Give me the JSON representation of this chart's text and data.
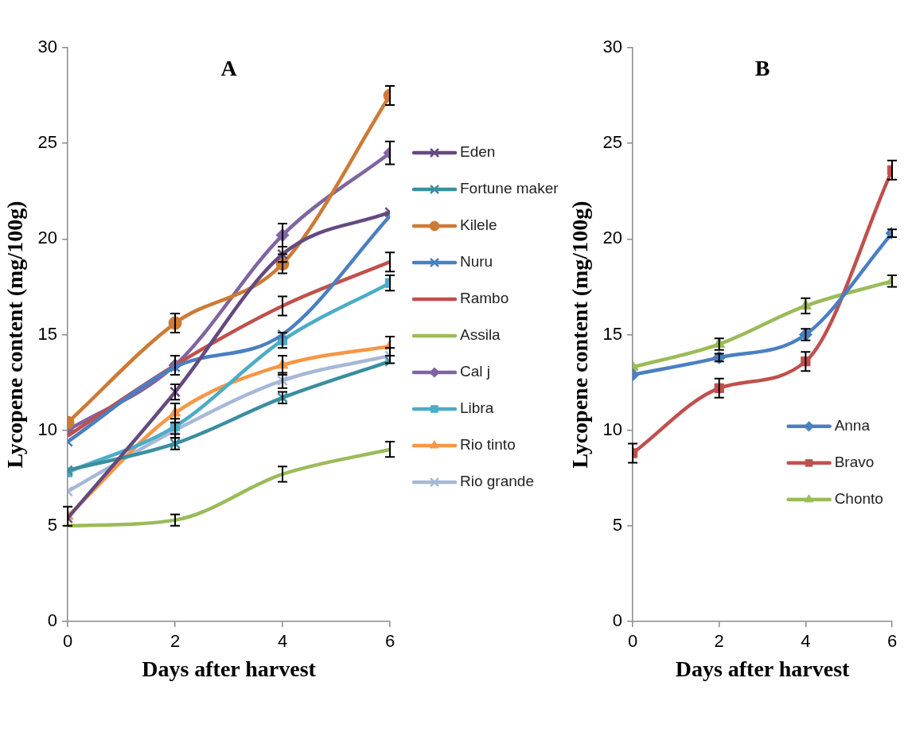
{
  "chart_data": [
    {
      "type": "line",
      "title": "A",
      "xlabel": "Days after harvest",
      "ylabel": "Lycopene content (mg/100g)",
      "x": [
        0,
        2,
        4,
        6
      ],
      "xlim": [
        0,
        6
      ],
      "xticks": [
        0,
        2,
        4,
        6
      ],
      "ylim": [
        0,
        30
      ],
      "yticks": [
        0,
        5,
        10,
        15,
        20,
        25,
        30
      ],
      "grid": false,
      "legend": "right",
      "series": [
        {
          "name": "Eden",
          "color": "#654a80",
          "marker": "cross",
          "values": [
            5.4,
            12.0,
            19.2,
            21.4
          ],
          "errors": [
            null,
            0.4,
            0.4,
            null
          ]
        },
        {
          "name": "Fortune maker",
          "color": "#3a8ea0",
          "marker": "cross",
          "values": [
            7.9,
            9.3,
            11.7,
            13.6
          ],
          "errors": [
            null,
            0.3,
            0.3,
            null
          ]
        },
        {
          "name": "Kilele",
          "color": "#cd7a35",
          "marker": "circle",
          "values": [
            10.4,
            15.6,
            18.7,
            27.5
          ],
          "errors": [
            null,
            0.5,
            0.5,
            0.5
          ]
        },
        {
          "name": "Nuru",
          "color": "#4a7fc1",
          "marker": "cross",
          "values": [
            9.4,
            13.3,
            15.0,
            21.2
          ]
        },
        {
          "name": "Rambo",
          "color": "#c0504d",
          "values": [
            9.7,
            13.4,
            16.5,
            18.8
          ],
          "errors": [
            null,
            0.5,
            0.5,
            0.5
          ]
        },
        {
          "name": "Assila",
          "color": "#9bbb59",
          "values": [
            5.0,
            5.3,
            7.7,
            9.0
          ],
          "errors": [
            null,
            0.3,
            0.4,
            0.4
          ]
        },
        {
          "name": "Cal j",
          "color": "#8064a2",
          "marker": "diamond",
          "values": [
            10.0,
            13.4,
            20.2,
            24.5
          ],
          "errors": [
            null,
            null,
            0.6,
            0.6
          ]
        },
        {
          "name": "Libra",
          "color": "#4bacc6",
          "marker": "square",
          "values": [
            7.8,
            10.2,
            14.7,
            17.7
          ],
          "errors": [
            null,
            0.4,
            0.4,
            0.4
          ]
        },
        {
          "name": "Rio tinto",
          "color": "#f79646",
          "marker": "triangle",
          "values": [
            5.5,
            10.9,
            13.4,
            14.4
          ],
          "errors": [
            0.5,
            0.5,
            0.5,
            0.5
          ]
        },
        {
          "name": "Rio grande",
          "color": "#a6b8d8",
          "marker": "cross",
          "values": [
            6.8,
            10.0,
            12.6,
            13.9
          ],
          "errors": [
            null,
            0.4,
            0.4,
            0.4
          ]
        }
      ]
    },
    {
      "type": "line",
      "title": "B",
      "xlabel": "Days after harvest",
      "ylabel": "Lycopene content (mg/100g)",
      "x": [
        0,
        2,
        4,
        6
      ],
      "xlim": [
        0,
        6
      ],
      "xticks": [
        0,
        2,
        4,
        6
      ],
      "ylim": [
        0,
        30
      ],
      "yticks": [
        0,
        5,
        10,
        15,
        20,
        25,
        30
      ],
      "grid": false,
      "legend": "bottom right",
      "series": [
        {
          "name": "Anna",
          "color": "#4a7fc1",
          "marker": "diamond",
          "values": [
            12.9,
            13.8,
            15.0,
            20.3
          ],
          "errors": [
            null,
            0.2,
            0.3,
            0.2
          ]
        },
        {
          "name": "Bravo",
          "color": "#c0504d",
          "marker": "square",
          "values": [
            8.8,
            12.2,
            13.6,
            23.6
          ],
          "errors": [
            0.5,
            0.5,
            0.5,
            0.5
          ]
        },
        {
          "name": "Chonto",
          "color": "#9bbb59",
          "marker": "triangle",
          "values": [
            13.3,
            14.5,
            16.5,
            17.8
          ],
          "errors": [
            null,
            0.3,
            0.4,
            0.3
          ]
        }
      ]
    }
  ]
}
